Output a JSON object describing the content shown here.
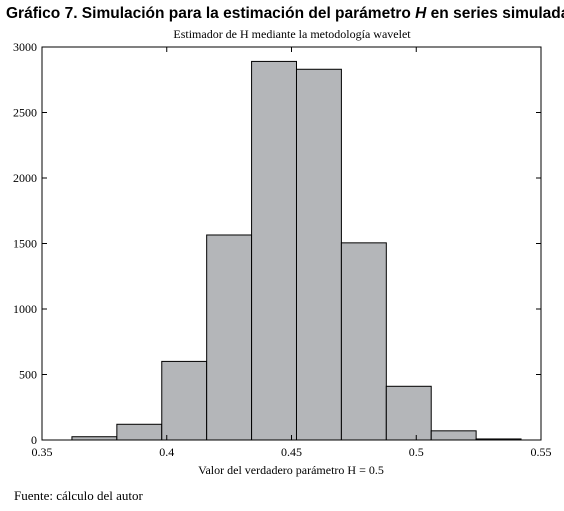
{
  "figure": {
    "title_prefix": "Gráfico 7. Simulación para la estimación del parámetro ",
    "title_italic": "H",
    "title_suffix": " en series simuladas",
    "source": "Fuente: cálculo del autor"
  },
  "chart_data": {
    "type": "bar",
    "subtitle": "Estimador de H mediante la metodología wavelet",
    "xlabel": "Valor del verdadero parámetro H = 0.5",
    "ylabel": "",
    "xlim": [
      0.35,
      0.55
    ],
    "ylim": [
      0,
      3000
    ],
    "xticks": [
      0.35,
      0.4,
      0.45,
      0.5,
      0.55
    ],
    "xtick_labels": [
      "0.35",
      "0.4",
      "0.45",
      "0.5",
      "0.55"
    ],
    "yticks": [
      0,
      500,
      1000,
      1500,
      2000,
      2500,
      3000
    ],
    "ytick_labels": [
      "0",
      "500",
      "1000",
      "1500",
      "2000",
      "2500",
      "3000"
    ],
    "bins": [
      {
        "from": 0.362,
        "to": 0.38,
        "value": 25
      },
      {
        "from": 0.38,
        "to": 0.398,
        "value": 120
      },
      {
        "from": 0.398,
        "to": 0.416,
        "value": 600
      },
      {
        "from": 0.416,
        "to": 0.434,
        "value": 1565
      },
      {
        "from": 0.434,
        "to": 0.452,
        "value": 2890
      },
      {
        "from": 0.452,
        "to": 0.47,
        "value": 2830
      },
      {
        "from": 0.47,
        "to": 0.488,
        "value": 1505
      },
      {
        "from": 0.488,
        "to": 0.506,
        "value": 410
      },
      {
        "from": 0.506,
        "to": 0.524,
        "value": 70
      },
      {
        "from": 0.524,
        "to": 0.542,
        "value": 8
      }
    ],
    "bar_fill": "#b4b6b9",
    "bar_stroke": "#000000",
    "grid": false,
    "legend": "none"
  }
}
